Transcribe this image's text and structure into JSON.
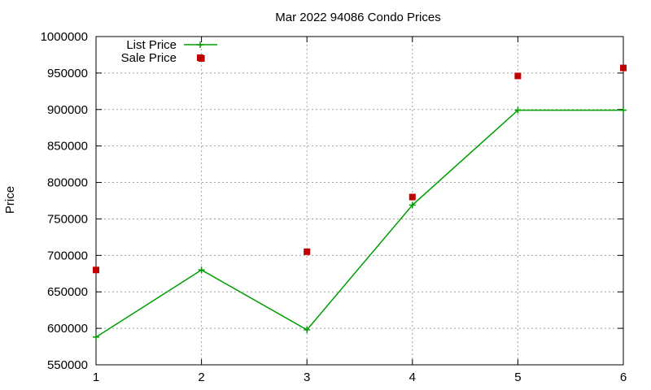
{
  "chart_data": {
    "type": "line",
    "title": "Mar 2022 94086 Condo Prices",
    "xlabel": "",
    "ylabel": "Price",
    "xlim": [
      1,
      6
    ],
    "ylim": [
      550000,
      1000000
    ],
    "x_ticks": [
      "1",
      "2",
      "3",
      "4",
      "5",
      "6"
    ],
    "y_ticks": [
      "550000",
      "600000",
      "650000",
      "700000",
      "750000",
      "800000",
      "850000",
      "900000",
      "950000",
      "1000000"
    ],
    "grid": true,
    "legend_position": "top-left",
    "x": [
      1,
      2,
      3,
      4,
      5,
      6
    ],
    "series": [
      {
        "name": "List Price",
        "style": "line-plus",
        "color": "#009e00",
        "values": [
          588000,
          680000,
          598000,
          769000,
          899000,
          899000
        ]
      },
      {
        "name": "Sale Price",
        "style": "square-points",
        "color": "#c00000",
        "values": [
          680000,
          970000,
          705000,
          780000,
          946000,
          957000
        ]
      }
    ]
  }
}
